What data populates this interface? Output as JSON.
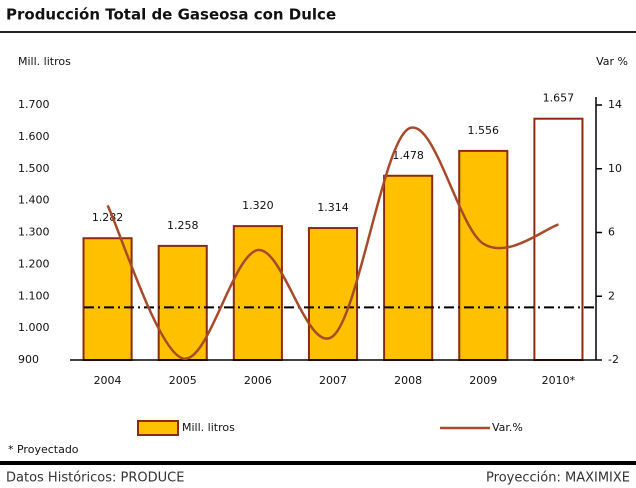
{
  "chart_data": {
    "type": "bar_line",
    "title": "Producción Total de Gaseosa con Dulce",
    "y_label": "Mill. litros",
    "y2_label": "Var %",
    "categories": [
      "2004",
      "2005",
      "2006",
      "2007",
      "2008",
      "2009",
      "2010*"
    ],
    "series": [
      {
        "name": "Mill. litros",
        "color": "#ffc000",
        "edge_color": "#8b2a10",
        "colors": [
          "#ffc000",
          "#ffc000",
          "#ffc000",
          "#ffc000",
          "#ffc000",
          "#ffc000",
          "#ffffff"
        ],
        "values": [
          1282,
          1258,
          1320,
          1314,
          1478,
          1556,
          1657
        ],
        "value_labels": [
          "1.282",
          "1.258",
          "1.320",
          "1.314",
          "1.478",
          "1.556",
          "1.657"
        ]
      },
      {
        "name": "Var.%",
        "color": "#a84a2a",
        "axis": "y2",
        "values": [
          7.7,
          -1.9,
          4.9,
          -0.5,
          12.5,
          5.3,
          6.5
        ]
      }
    ],
    "reference_line": {
      "axis": "y2",
      "value": 1.3
    },
    "ylim": [
      900,
      1700
    ],
    "yticks": [
      {
        "value": 900,
        "label": "900"
      },
      {
        "value": 1000,
        "label": "1.000"
      },
      {
        "value": 1100,
        "label": "1.100"
      },
      {
        "value": 1200,
        "label": "1.200"
      },
      {
        "value": 1300,
        "label": "1.300"
      },
      {
        "value": 1400,
        "label": "1.400"
      },
      {
        "value": 1500,
        "label": "1.500"
      },
      {
        "value": 1600,
        "label": "1.600"
      },
      {
        "value": 1700,
        "label": "1.700"
      }
    ],
    "y2lim": [
      -2,
      14
    ],
    "y2ticks": [
      -2,
      2,
      6,
      10,
      14
    ],
    "footnote": "* Proyectado",
    "source_left": "Datos Históricos: PRODUCE",
    "source_right": "Proyección: MAXIMIXE"
  }
}
